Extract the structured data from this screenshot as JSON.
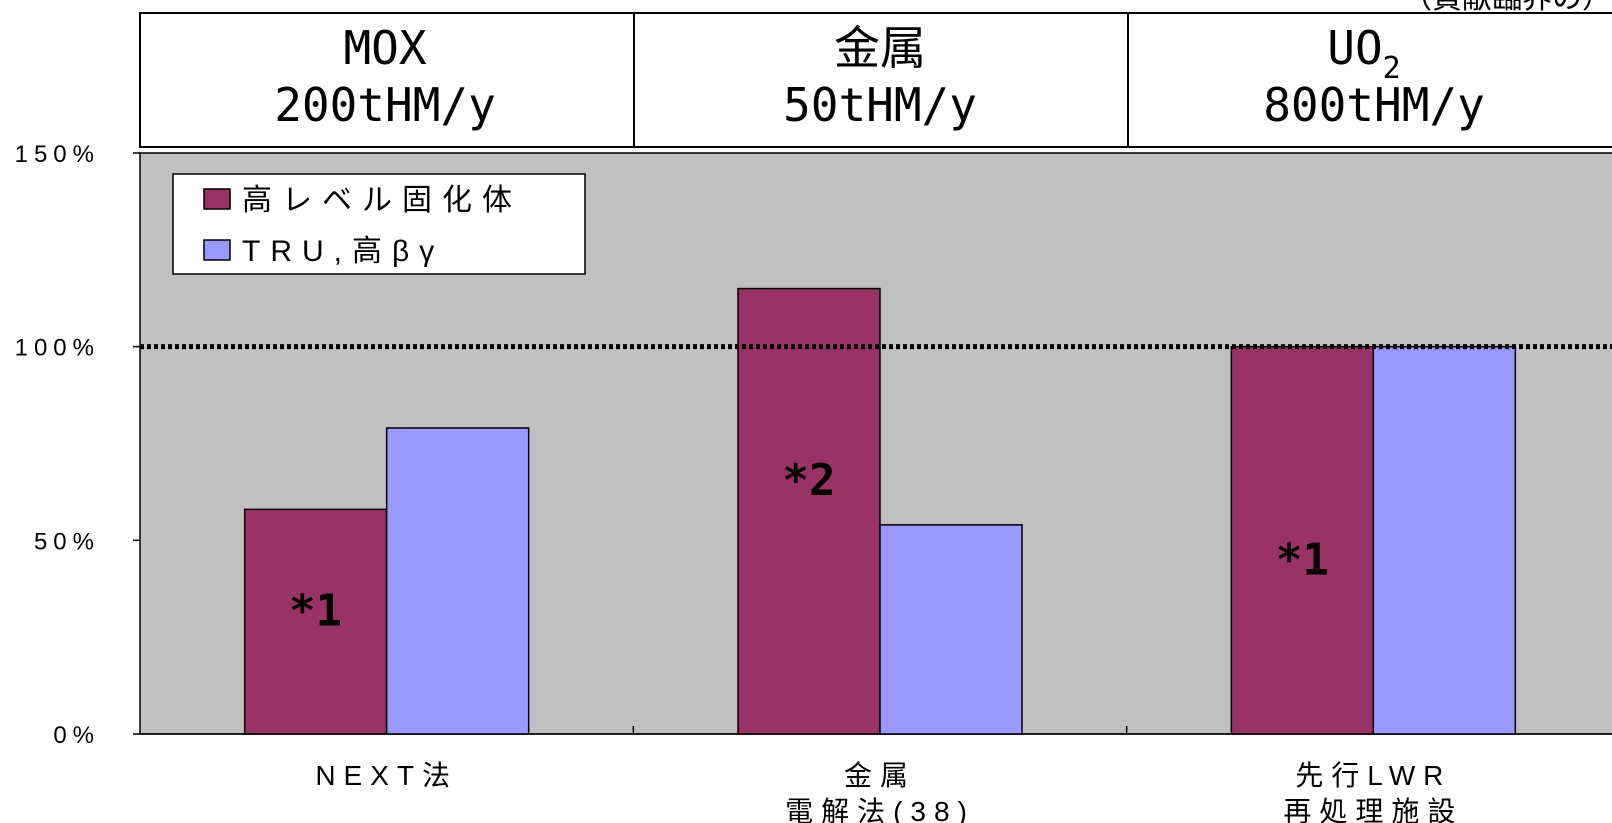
{
  "chart_data": {
    "type": "bar",
    "headers": [
      {
        "line1": "MOX",
        "line2": "200tHM/y"
      },
      {
        "line1": "金属",
        "line2": "50tHM/y"
      },
      {
        "line1": "UO",
        "sub": "2",
        "line2": "800tHM/y"
      }
    ],
    "corner_fragment": "（貢献臨界の）",
    "categories": [
      {
        "lines": [
          "NEXT法"
        ]
      },
      {
        "lines": [
          "金属",
          "電解法(38)"
        ]
      },
      {
        "lines": [
          "先行LWR",
          "再処理施設"
        ]
      }
    ],
    "series": [
      {
        "name": "高レベル固化体",
        "values": [
          58,
          115,
          100
        ],
        "color": "#993366"
      },
      {
        "name": "TRU,高βγ",
        "values": [
          79,
          54,
          100
        ],
        "color": "#9999ff"
      }
    ],
    "annotations": [
      "*1",
      "*2",
      "*1"
    ],
    "y_ticks": [
      "0%",
      "50%",
      "100%",
      "150%"
    ],
    "ylim": [
      0,
      150
    ],
    "reference_line": 100,
    "plot_background": "#c0c0c0",
    "legend_position": "top-left"
  }
}
